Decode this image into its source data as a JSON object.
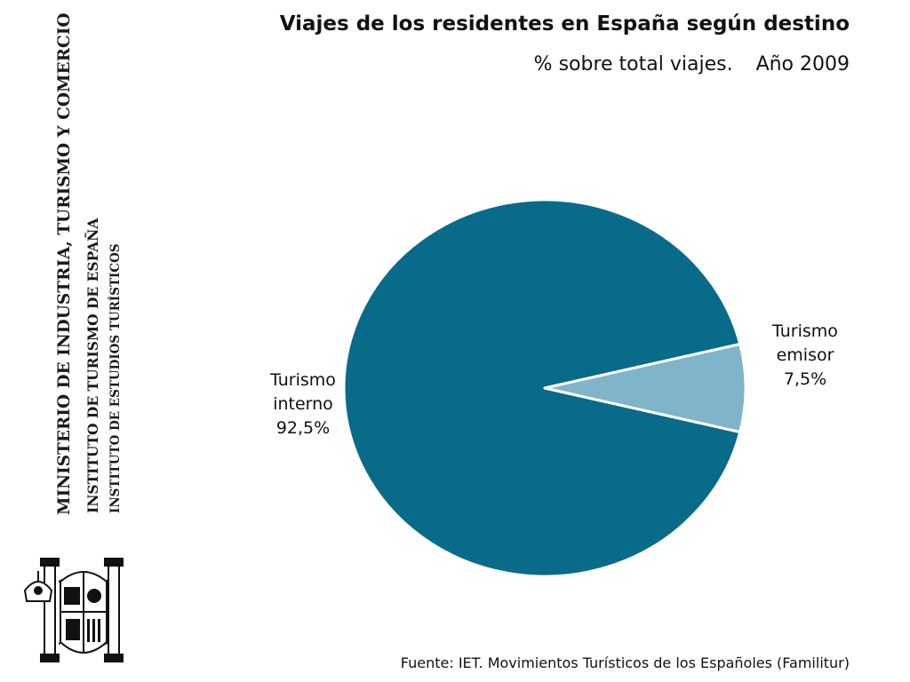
{
  "institution": {
    "line1": "MINISTERIO DE INDUSTRIA, TURISMO Y COMERCIO",
    "line2": "INSTITUTO DE TURISMO DE ESPAÑA",
    "line3": "INSTITUTO DE ESTUDIOS TURÍSTICOS"
  },
  "source": "Fuente: IET. Movimientos Turísticos de los Españoles (Familitur)",
  "colors": {
    "interno": "#086b8a",
    "emisor": "#7fb4c9"
  },
  "chart_data": {
    "type": "pie",
    "title": "Viajes de los residentes en España según destino",
    "subtitle_part1": "% sobre total viajes.",
    "subtitle_part2": "Año 2009",
    "slices": [
      {
        "label_line1": "Turismo",
        "label_line2": "interno",
        "value_text": "92,5%",
        "value": 92.5
      },
      {
        "label_line1": "Turismo",
        "label_line2": "emisor",
        "value_text": "7,5%",
        "value": 7.5
      }
    ]
  }
}
